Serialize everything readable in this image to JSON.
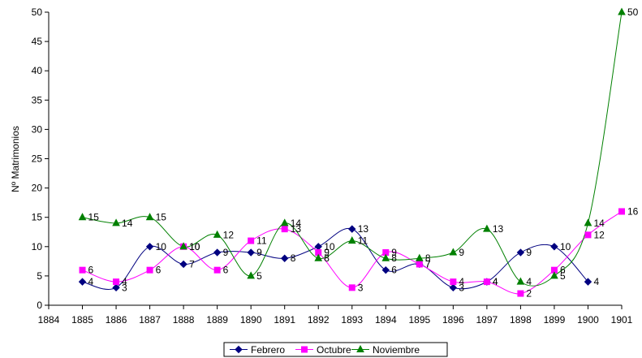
{
  "chart_data": {
    "type": "line",
    "ylabel": "Nº Matrimonios",
    "xlabel": "",
    "title": "",
    "x_ticks": [
      "1884",
      "1885",
      "1886",
      "1887",
      "1888",
      "1889",
      "1890",
      "1891",
      "1892",
      "1893",
      "1894",
      "1895",
      "1896",
      "1897",
      "1898",
      "1899",
      "1900",
      "1901"
    ],
    "xlim": [
      1884,
      1901
    ],
    "ylim": [
      0,
      50
    ],
    "y_ticks": [
      0,
      5,
      10,
      15,
      20,
      25,
      30,
      35,
      40,
      45,
      50
    ],
    "grid": false,
    "legend_position": "bottom",
    "series": [
      {
        "name": "Febrero",
        "color": "#000080",
        "marker": "diamond",
        "x": [
          1885,
          1886,
          1887,
          1888,
          1889,
          1890,
          1891,
          1892,
          1893,
          1894,
          1895,
          1896,
          1897,
          1898,
          1899,
          1900
        ],
        "values": [
          4,
          3,
          10,
          7,
          9,
          9,
          8,
          10,
          13,
          6,
          7,
          3,
          4,
          9,
          10,
          4
        ]
      },
      {
        "name": "Octubre",
        "color": "#FF00FF",
        "marker": "square",
        "x": [
          1885,
          1886,
          1887,
          1888,
          1889,
          1890,
          1891,
          1892,
          1893,
          1894,
          1895,
          1896,
          1897,
          1898,
          1899,
          1900,
          1901
        ],
        "values": [
          6,
          4,
          6,
          10,
          6,
          11,
          13,
          9,
          3,
          9,
          7,
          4,
          4,
          2,
          6,
          12,
          16
        ]
      },
      {
        "name": "Noviembre",
        "color": "#008000",
        "marker": "triangle",
        "x": [
          1885,
          1886,
          1887,
          1888,
          1889,
          1890,
          1891,
          1892,
          1893,
          1894,
          1895,
          1896,
          1897,
          1898,
          1899,
          1900,
          1901
        ],
        "values": [
          15,
          14,
          15,
          10,
          12,
          5,
          14,
          8,
          11,
          8,
          8,
          9,
          13,
          4,
          5,
          14,
          50
        ]
      }
    ]
  }
}
